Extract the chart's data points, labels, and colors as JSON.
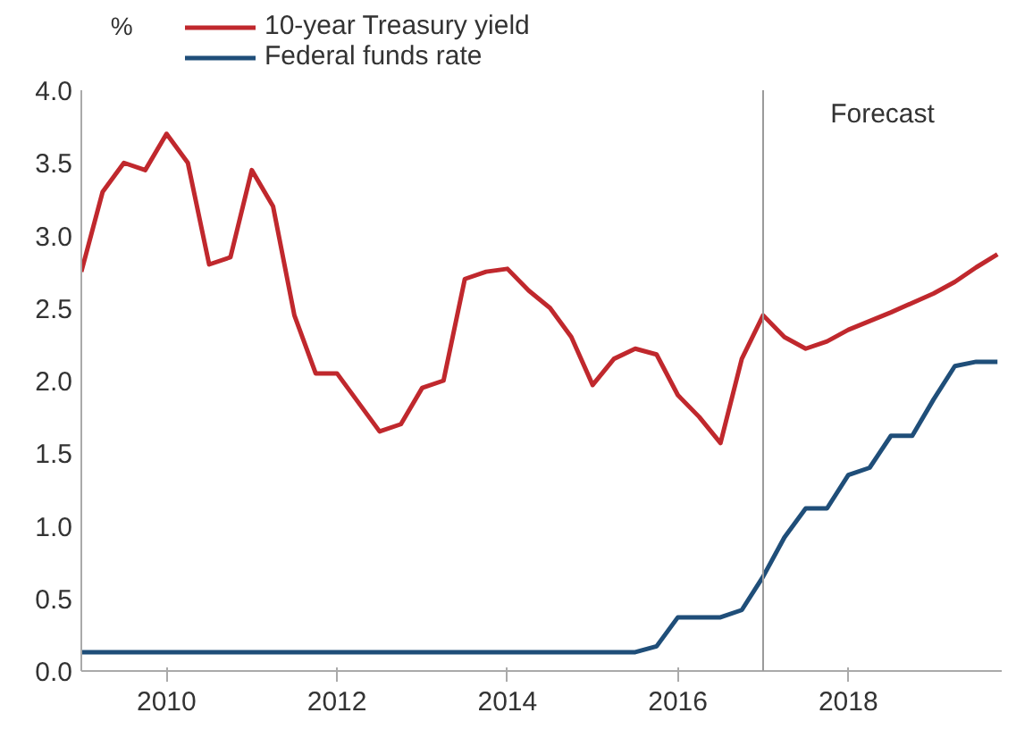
{
  "chart_data": {
    "type": "line",
    "ylabel": "%",
    "series": [
      {
        "name": "10-year Treasury yield",
        "color": "#c0282d",
        "x": [
          2009.0,
          2009.25,
          2009.5,
          2009.75,
          2010.0,
          2010.25,
          2010.5,
          2010.75,
          2011.0,
          2011.25,
          2011.5,
          2011.75,
          2012.0,
          2012.25,
          2012.5,
          2012.75,
          2013.0,
          2013.25,
          2013.5,
          2013.75,
          2014.0,
          2014.25,
          2014.5,
          2014.75,
          2015.0,
          2015.25,
          2015.5,
          2015.75,
          2016.0,
          2016.25,
          2016.5,
          2016.75,
          2017.0,
          2017.25,
          2017.5,
          2017.75,
          2018.0,
          2018.5,
          2019.0,
          2019.25,
          2019.5,
          2019.75
        ],
        "values": [
          2.75,
          3.3,
          3.5,
          3.45,
          3.7,
          3.5,
          2.8,
          2.85,
          3.45,
          3.2,
          2.45,
          2.05,
          2.05,
          1.85,
          1.65,
          1.7,
          1.95,
          2.0,
          2.7,
          2.75,
          2.77,
          2.62,
          2.5,
          2.3,
          1.97,
          2.15,
          2.22,
          2.18,
          1.9,
          1.75,
          1.57,
          2.15,
          2.45,
          2.3,
          2.22,
          2.27,
          2.35,
          2.47,
          2.6,
          2.68,
          2.78,
          2.87
        ]
      },
      {
        "name": "Federal funds rate",
        "color": "#1f4e79",
        "x": [
          2009.0,
          2015.5,
          2015.75,
          2016.0,
          2016.5,
          2016.75,
          2017.0,
          2017.25,
          2017.5,
          2017.75,
          2018.0,
          2018.25,
          2018.5,
          2018.75,
          2019.0,
          2019.25,
          2019.5,
          2019.75
        ],
        "values": [
          0.13,
          0.13,
          0.17,
          0.37,
          0.37,
          0.42,
          0.65,
          0.92,
          1.12,
          1.12,
          1.35,
          1.4,
          1.62,
          1.62,
          1.87,
          2.1,
          2.13,
          2.13
        ]
      }
    ],
    "xlim": [
      2009.0,
      2019.8
    ],
    "xticks": [
      2010,
      2012,
      2014,
      2016,
      2018
    ],
    "ylim": [
      0,
      4
    ],
    "yticks": [
      {
        "value": 0,
        "label": "0.0"
      },
      {
        "value": 0.5,
        "label": "0.5"
      },
      {
        "value": 1,
        "label": "1.0"
      },
      {
        "value": 1.5,
        "label": "1.5"
      },
      {
        "value": 2,
        "label": "2.0"
      },
      {
        "value": 2.5,
        "label": "2.5"
      },
      {
        "value": 3,
        "label": "3.0"
      },
      {
        "value": 3.5,
        "label": "3.5"
      },
      {
        "value": 4,
        "label": "4.0"
      }
    ],
    "ref_lines": [
      {
        "axis": "x",
        "value": 2017.0,
        "label": "Forecast",
        "color": "#999999"
      }
    ],
    "grid": false,
    "legend": "top left",
    "line_style": "solid",
    "marker": "none"
  }
}
